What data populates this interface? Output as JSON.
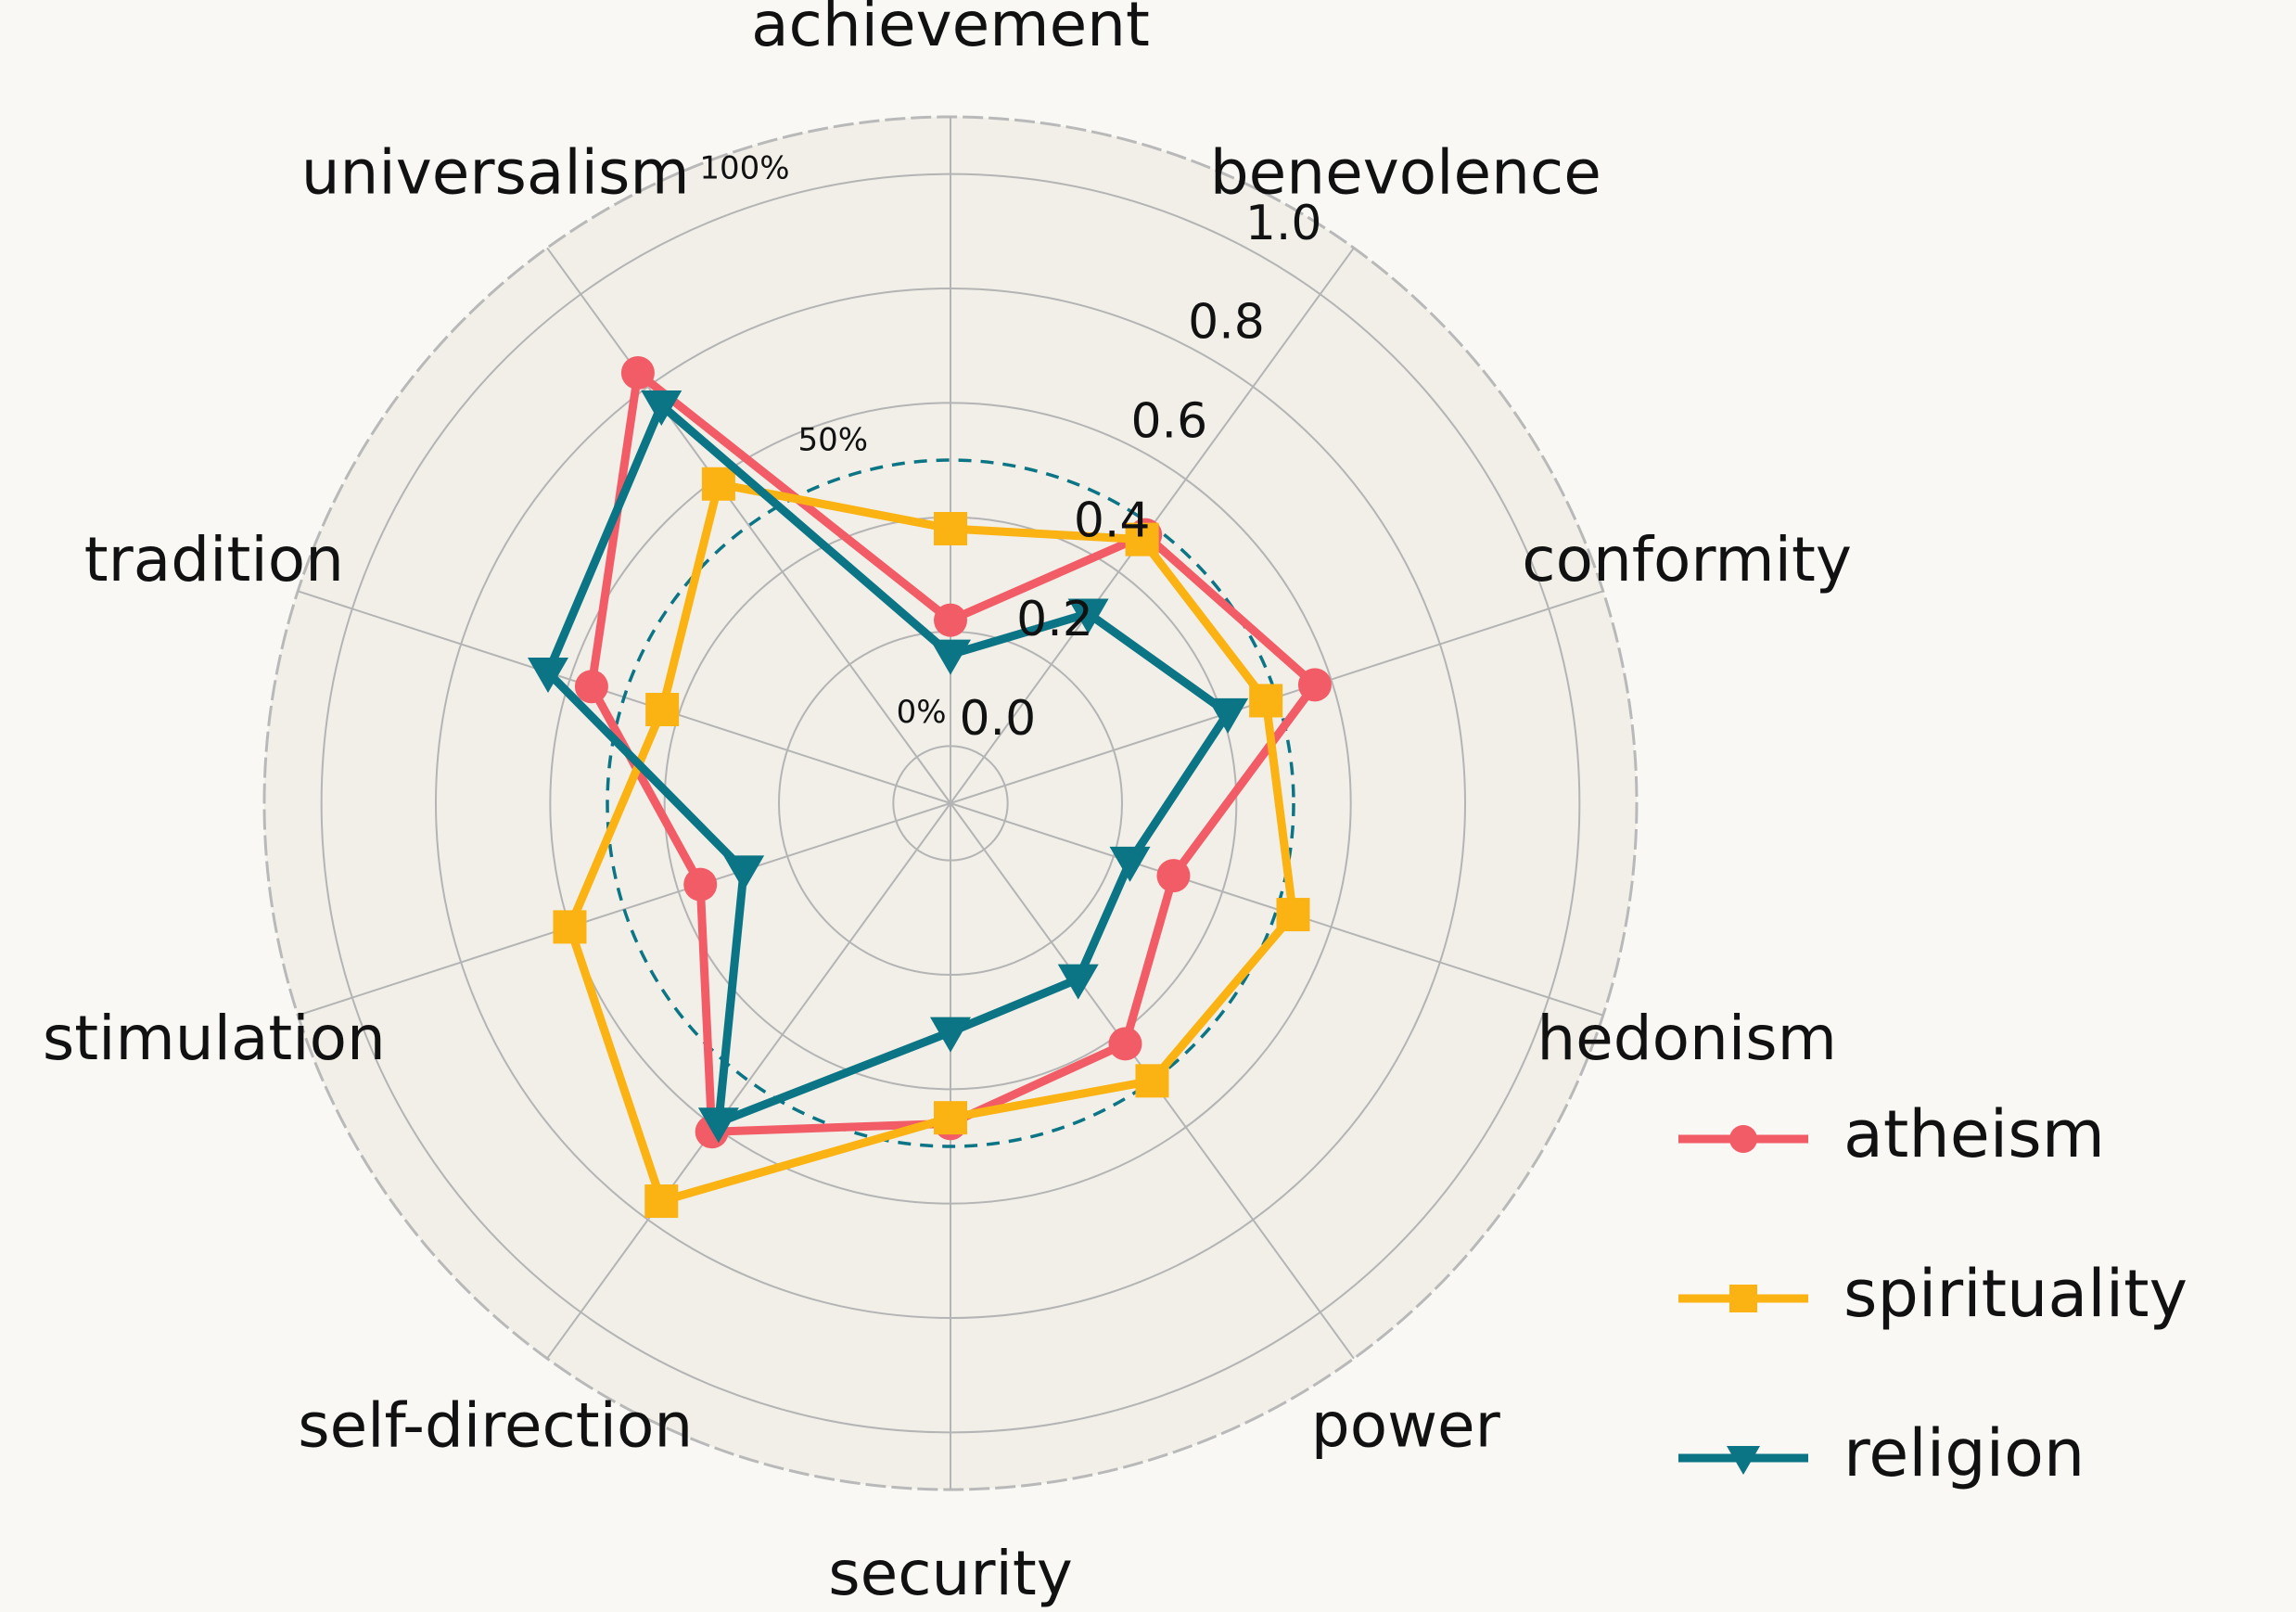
{
  "chart_data": {
    "type": "radar",
    "axes": [
      "achievement",
      "benevolence",
      "conformity",
      "hedonism",
      "power",
      "security",
      "self-direction",
      "stimulation",
      "tradition",
      "universalism"
    ],
    "series": [
      {
        "name": "atheism",
        "values": [
          0.22,
          0.48,
          0.57,
          0.31,
          0.42,
          0.46,
          0.61,
          0.36,
          0.56,
          0.83
        ],
        "color": "#f25c66",
        "marker": "circle"
      },
      {
        "name": "spirituality",
        "values": [
          0.38,
          0.47,
          0.48,
          0.53,
          0.5,
          0.45,
          0.76,
          0.6,
          0.43,
          0.59
        ],
        "color": "#fbb213",
        "marker": "square"
      },
      {
        "name": "religion",
        "values": [
          0.16,
          0.31,
          0.41,
          0.23,
          0.28,
          0.3,
          0.59,
          0.28,
          0.64,
          0.76
        ],
        "color": "#0b7485",
        "marker": "triangle-down"
      }
    ],
    "radial_ticks": [
      "0.0",
      "0.2",
      "0.4",
      "0.6",
      "0.8",
      "1.0"
    ],
    "radial_range": [
      -0.1,
      1.1
    ],
    "percent_labels": [
      {
        "text": "0%",
        "value": 0.0
      },
      {
        "text": "50%",
        "value": 0.5
      },
      {
        "text": "100%",
        "value": 1.0
      }
    ],
    "reference_circle": {
      "value": 0.5,
      "style": "dashed",
      "color": "#0b7485"
    },
    "grid": true,
    "legend_position": "bottom-right"
  }
}
